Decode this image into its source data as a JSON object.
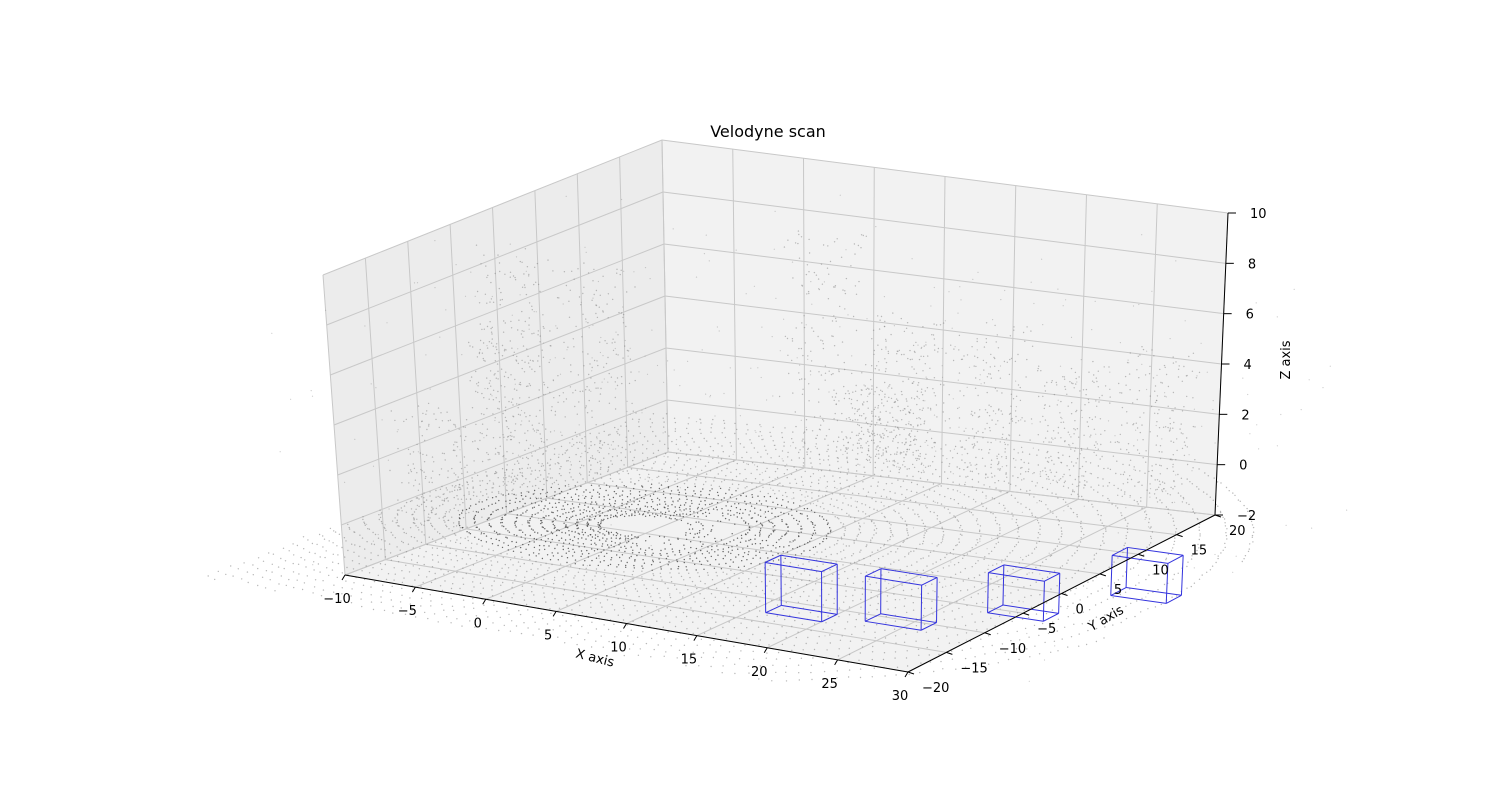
{
  "chart_data": {
    "type": "scatter",
    "projection": "3d",
    "title": "Velodyne scan",
    "xlabel": "X axis",
    "ylabel": "Y axis",
    "zlabel": "Z axis",
    "xlim": [
      -10,
      30
    ],
    "ylim": [
      -20,
      20
    ],
    "zlim": [
      -2,
      10
    ],
    "x_ticks": [
      "−10",
      "−5",
      "0",
      "5",
      "10",
      "15",
      "20",
      "25",
      "30"
    ],
    "y_ticks": [
      "−20",
      "−15",
      "−10",
      "−5",
      "0",
      "5",
      "10",
      "15",
      "20"
    ],
    "z_ticks": [
      "−2",
      "0",
      "2",
      "4",
      "6",
      "8",
      "10"
    ],
    "grid": true,
    "point_color": "#555555",
    "box_color": "#3333dd",
    "points_description": "lidar point cloud: concentric ground rings around sensor at origin plus vertical structures",
    "boxes": [
      {
        "center": [
          18,
          -12,
          -1
        ],
        "size": [
          4,
          2,
          2
        ]
      },
      {
        "center": [
          24,
          -10,
          -1.2
        ],
        "size": [
          4,
          2,
          1.8
        ]
      },
      {
        "center": [
          30,
          -5,
          -1.2
        ],
        "size": [
          4,
          2,
          1.6
        ]
      },
      {
        "center": [
          35,
          2,
          -1.2
        ],
        "size": [
          4,
          2,
          1.6
        ]
      }
    ]
  }
}
